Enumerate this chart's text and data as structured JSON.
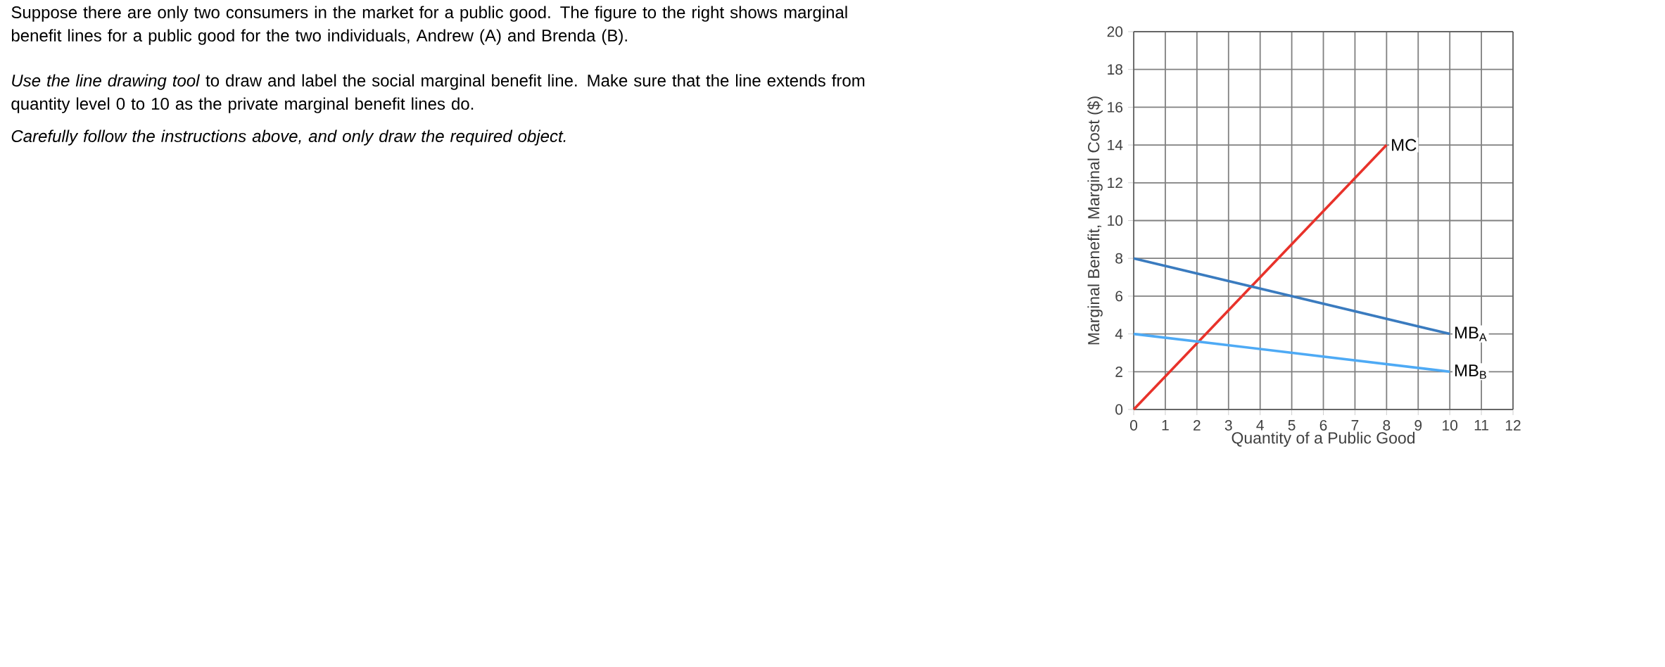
{
  "chart_data": {
    "type": "line",
    "xlabel": "Quantity of a Public Good",
    "ylabel": "Marginal Benefit, Marginal Cost ($)",
    "xlim": [
      0,
      12
    ],
    "ylim": [
      0,
      20
    ],
    "xticks": [
      0,
      1,
      2,
      3,
      4,
      5,
      6,
      7,
      8,
      9,
      10,
      11,
      12
    ],
    "yticks": [
      0,
      2,
      4,
      6,
      8,
      10,
      12,
      14,
      16,
      18,
      20
    ],
    "grid": true,
    "marker": "none",
    "line_style": "solid",
    "series": [
      {
        "name": "MC",
        "color": "#e8322a",
        "x": [
          0,
          8
        ],
        "values": [
          0,
          14
        ]
      },
      {
        "name": "MB$_{A}$",
        "color": "#3a7bbf",
        "x": [
          0,
          10
        ],
        "values": [
          8,
          4
        ]
      },
      {
        "name": "MB$_{B}$",
        "color": "#4eaaf5",
        "x": [
          0,
          10
        ],
        "values": [
          4,
          2
        ]
      }
    ],
    "annotations": [
      "Suppose there are only two consumers in the market for a public good. The figure to the right shows marginal benefit lines for a public good for the two individuals, Andrew (A) and Brenda (B).",
      "*Use the line drawing tool* to draw and label the social marginal benefit line. Make sure that the line extends from quantity level 0 to 10 as the private marginal benefit lines do.",
      "Carefully follow the instructions above, and only draw the required object."
    ]
  }
}
